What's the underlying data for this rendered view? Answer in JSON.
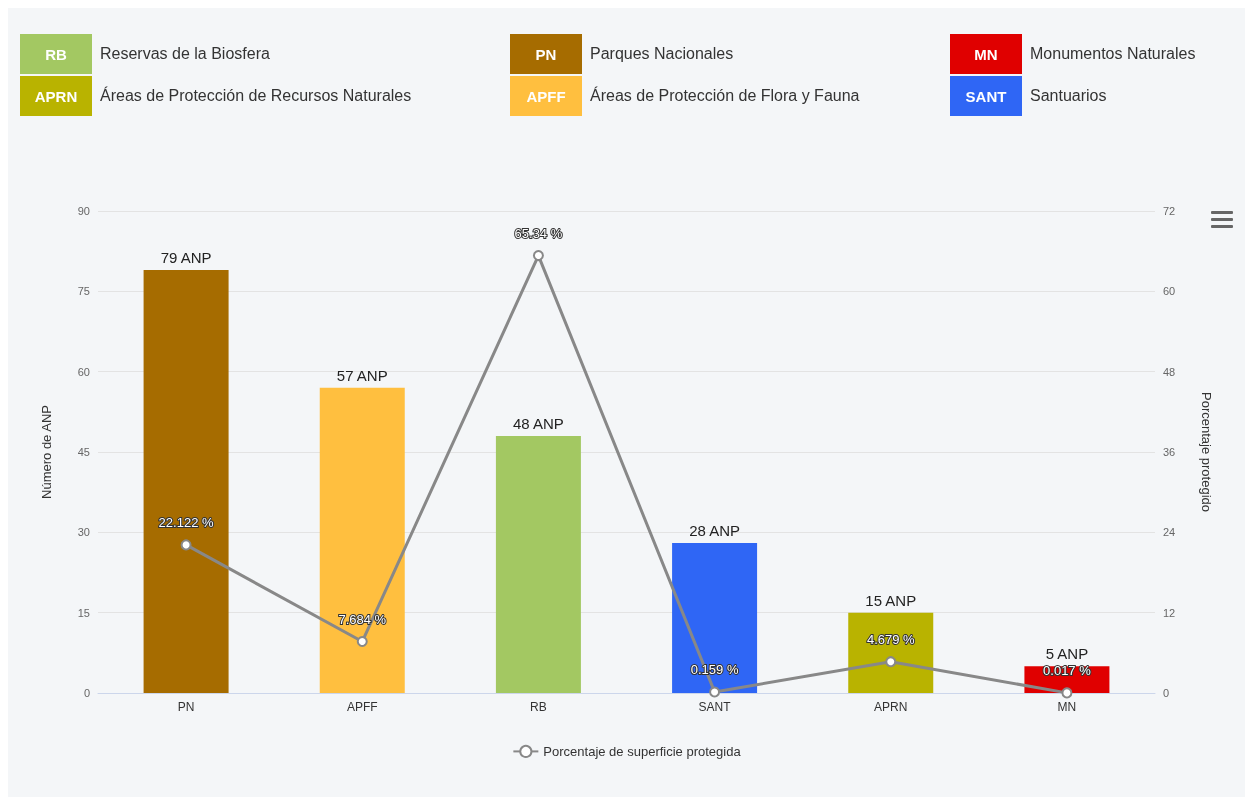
{
  "chart_data": {
    "type": "bar",
    "categories": [
      "PN",
      "APFF",
      "RB",
      "SANT",
      "APRN",
      "MN"
    ],
    "ylabel": "Número de ANP",
    "y2label": "Porcentaje protegido",
    "ylim": [
      0,
      90
    ],
    "yticks": [
      0,
      15,
      30,
      45,
      60,
      75,
      90
    ],
    "y2lim": [
      0,
      72
    ],
    "y2ticks": [
      0,
      12,
      24,
      36,
      48,
      60,
      72
    ],
    "grid": "y",
    "legend": "bottom",
    "annotations": [
      "Reservas de la Biosfera",
      "Parques Nacionales",
      "Monumentos Naturales",
      "Áreas de Protección de Recursos Naturales",
      "Áreas de Protección de Flora y Fauna",
      "Santuarios"
    ],
    "series": [
      {
        "colors": [
          "#a66c00",
          "#ffbf3f",
          "#a3c862",
          "#2f66f5",
          "#b9b300",
          "#e00000"
        ],
        "values": [
          79,
          57,
          48,
          28,
          15,
          5
        ],
        "value_labels": [
          "79 ANP",
          "57 ANP",
          "48 ANP",
          "28 ANP",
          "15 ANP",
          "5 ANP"
        ]
      },
      {
        "type": "line",
        "name": "Porcentaje de superficie protegida",
        "color": "#888888",
        "axis": "y2",
        "marker": "circle",
        "values": [
          22.122,
          7.684,
          65.34,
          0.159,
          4.679,
          0.017
        ],
        "value_labels": [
          "22.122 %",
          "7.684 %",
          "65.34 %",
          "0.159 %",
          "4.679 %",
          "0.017 %"
        ]
      }
    ]
  }
}
